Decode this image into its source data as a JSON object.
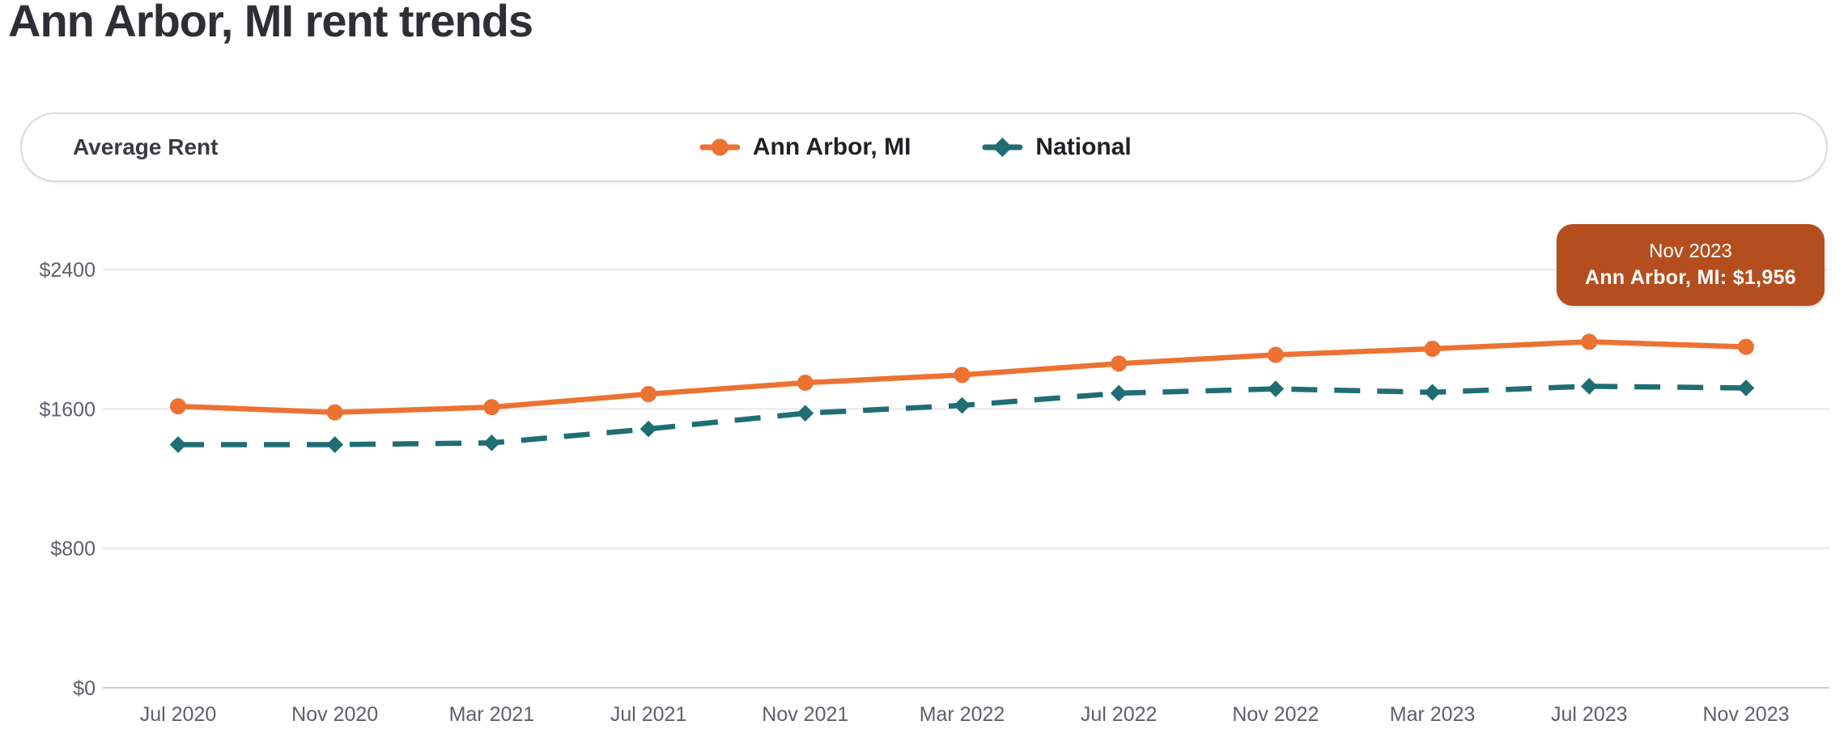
{
  "page": {
    "title": "Ann Arbor, MI rent trends"
  },
  "panel": {
    "label": "Average Rent"
  },
  "legend": [
    {
      "name": "Ann Arbor, MI"
    },
    {
      "name": "National"
    }
  ],
  "tooltip": {
    "line1": "Nov 2023",
    "line2": "Ann Arbor, MI: $1,956",
    "bg": "#b44e1e"
  },
  "colors": {
    "ann_arbor_series": "#ec7232",
    "national_series": "#1e6e74",
    "tooltip_bg": "#b44e1e",
    "title_text": "#2e2f34",
    "tick_text": "#5f5f6a",
    "gridline": "#e8e8ee",
    "baseline": "#c9cbdb",
    "panel_border": "#d9d9dd"
  },
  "chart_data": {
    "type": "line",
    "title": "Ann Arbor, MI rent trends",
    "xlabel": "",
    "ylabel": "",
    "categories": [
      "Jul 2020",
      "Nov 2020",
      "Mar 2021",
      "Jul 2021",
      "Nov 2021",
      "Mar 2022",
      "Jul 2022",
      "Nov 2022",
      "Mar 2023",
      "Jul 2023",
      "Nov 2023"
    ],
    "series": [
      {
        "name": "Ann Arbor, MI",
        "color": "#ec7232",
        "style": "solid",
        "marker": "circle",
        "values": [
          1615,
          1580,
          1610,
          1685,
          1750,
          1795,
          1860,
          1910,
          1945,
          1985,
          1956
        ]
      },
      {
        "name": "National",
        "color": "#1e6e74",
        "style": "dashed",
        "marker": "diamond",
        "values": [
          1395,
          1395,
          1405,
          1485,
          1575,
          1620,
          1690,
          1715,
          1695,
          1730,
          1720
        ]
      }
    ],
    "ylim": [
      0,
      2400
    ],
    "yticks": [
      0,
      800,
      1600,
      2400
    ],
    "ytick_prefix": "$",
    "grid": "horizontal",
    "legend_position": "top",
    "annotations": [
      {
        "label": "Nov 2023",
        "value_label": "Ann Arbor, MI: $1,956",
        "series": "Ann Arbor, MI",
        "category": "Nov 2023",
        "value": 1956
      }
    ]
  }
}
